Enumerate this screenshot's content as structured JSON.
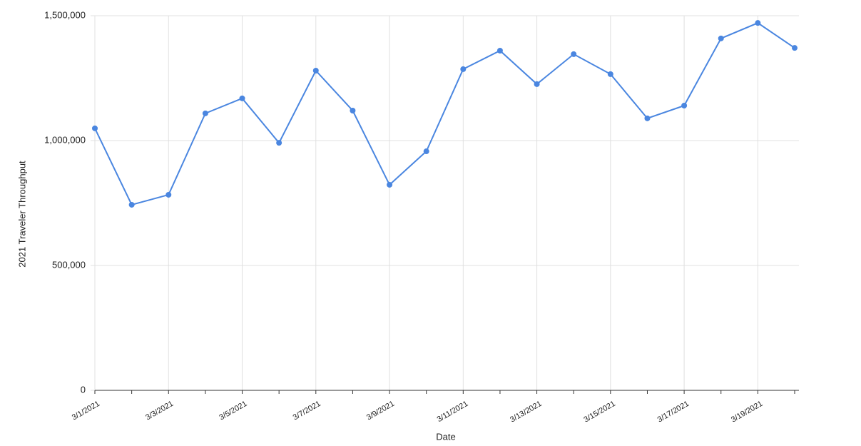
{
  "chart_data": {
    "type": "line",
    "x_label": "Date",
    "y_label": "2021 Traveler Throughput",
    "categories": [
      "3/1/2021",
      null,
      "3/3/2021",
      null,
      "3/5/2021",
      null,
      "3/7/2021",
      null,
      "3/9/2021",
      null,
      "3/11/2021",
      null,
      "3/13/2021",
      null,
      "3/15/2021",
      null,
      "3/17/2021",
      null,
      "3/19/2021",
      null
    ],
    "series": [
      {
        "name": "2021 Traveler Throughput",
        "color": "#4a86e0",
        "values": [
          1049000,
          743000,
          783000,
          1109000,
          1169000,
          991000,
          1280000,
          1120000,
          823000,
          957000,
          1286000,
          1360000,
          1226000,
          1346000,
          1266000,
          1089000,
          1140000,
          1409000,
          1471000,
          1371000
        ]
      }
    ],
    "ylim": [
      0,
      1500000
    ],
    "yticks": [
      0,
      {
        "value": 500000,
        "label": "500,000"
      },
      {
        "value": 1000000,
        "label": "1,000,000"
      },
      {
        "value": 1500000,
        "label": "1,500,000"
      }
    ],
    "grid": true
  }
}
